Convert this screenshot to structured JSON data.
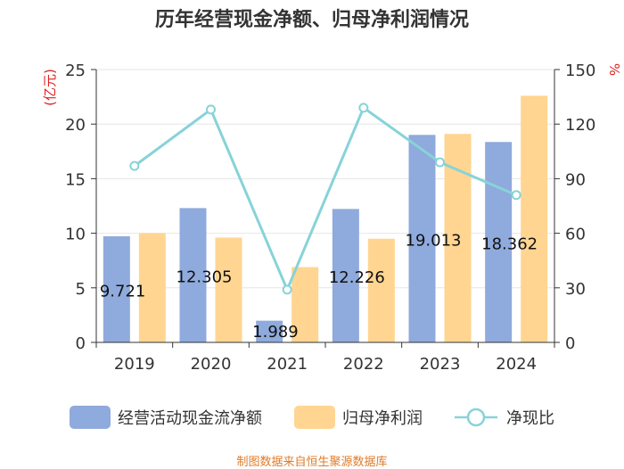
{
  "title": "历年经营现金净额、归母净利润情况",
  "source": "制图数据来自恒生聚源数据库",
  "legend": {
    "series1": "经营活动现金流净额",
    "series2": "归母净利润",
    "series3": "净现比"
  },
  "colors": {
    "series1": "#8faadc",
    "series2": "#ffd591",
    "line": "#87d3d8",
    "axis_label_left": "#e02020",
    "axis_label_right": "#e02020",
    "source": "#e07b2a"
  },
  "chart_data": {
    "type": "bar",
    "title": "历年经营现金净额、归母净利润情况",
    "categories": [
      "2019",
      "2020",
      "2021",
      "2022",
      "2023",
      "2024"
    ],
    "series": [
      {
        "name": "经营活动现金流净额",
        "axis": "left",
        "values": [
          9.721,
          12.305,
          1.989,
          12.226,
          19.013,
          18.362
        ],
        "labels": [
          "9.721",
          "12.305",
          "1.989",
          "12.226",
          "19.013",
          "18.362"
        ]
      },
      {
        "name": "归母净利润",
        "axis": "left",
        "values": [
          10.0,
          9.6,
          6.9,
          9.5,
          19.1,
          22.6
        ]
      },
      {
        "name": "净现比",
        "type": "line",
        "axis": "right",
        "values": [
          97,
          128,
          29,
          129,
          99,
          81
        ]
      }
    ],
    "ylabel": "(亿元)",
    "ylim": [
      0,
      25
    ],
    "yticks": [
      "0",
      "5",
      "10",
      "15",
      "20",
      "25"
    ],
    "y2label": "%",
    "y2lim": [
      0,
      150
    ],
    "y2ticks": [
      "0",
      "30",
      "60",
      "90",
      "120",
      "150"
    ],
    "grid": true,
    "legend_position": "bottom"
  }
}
